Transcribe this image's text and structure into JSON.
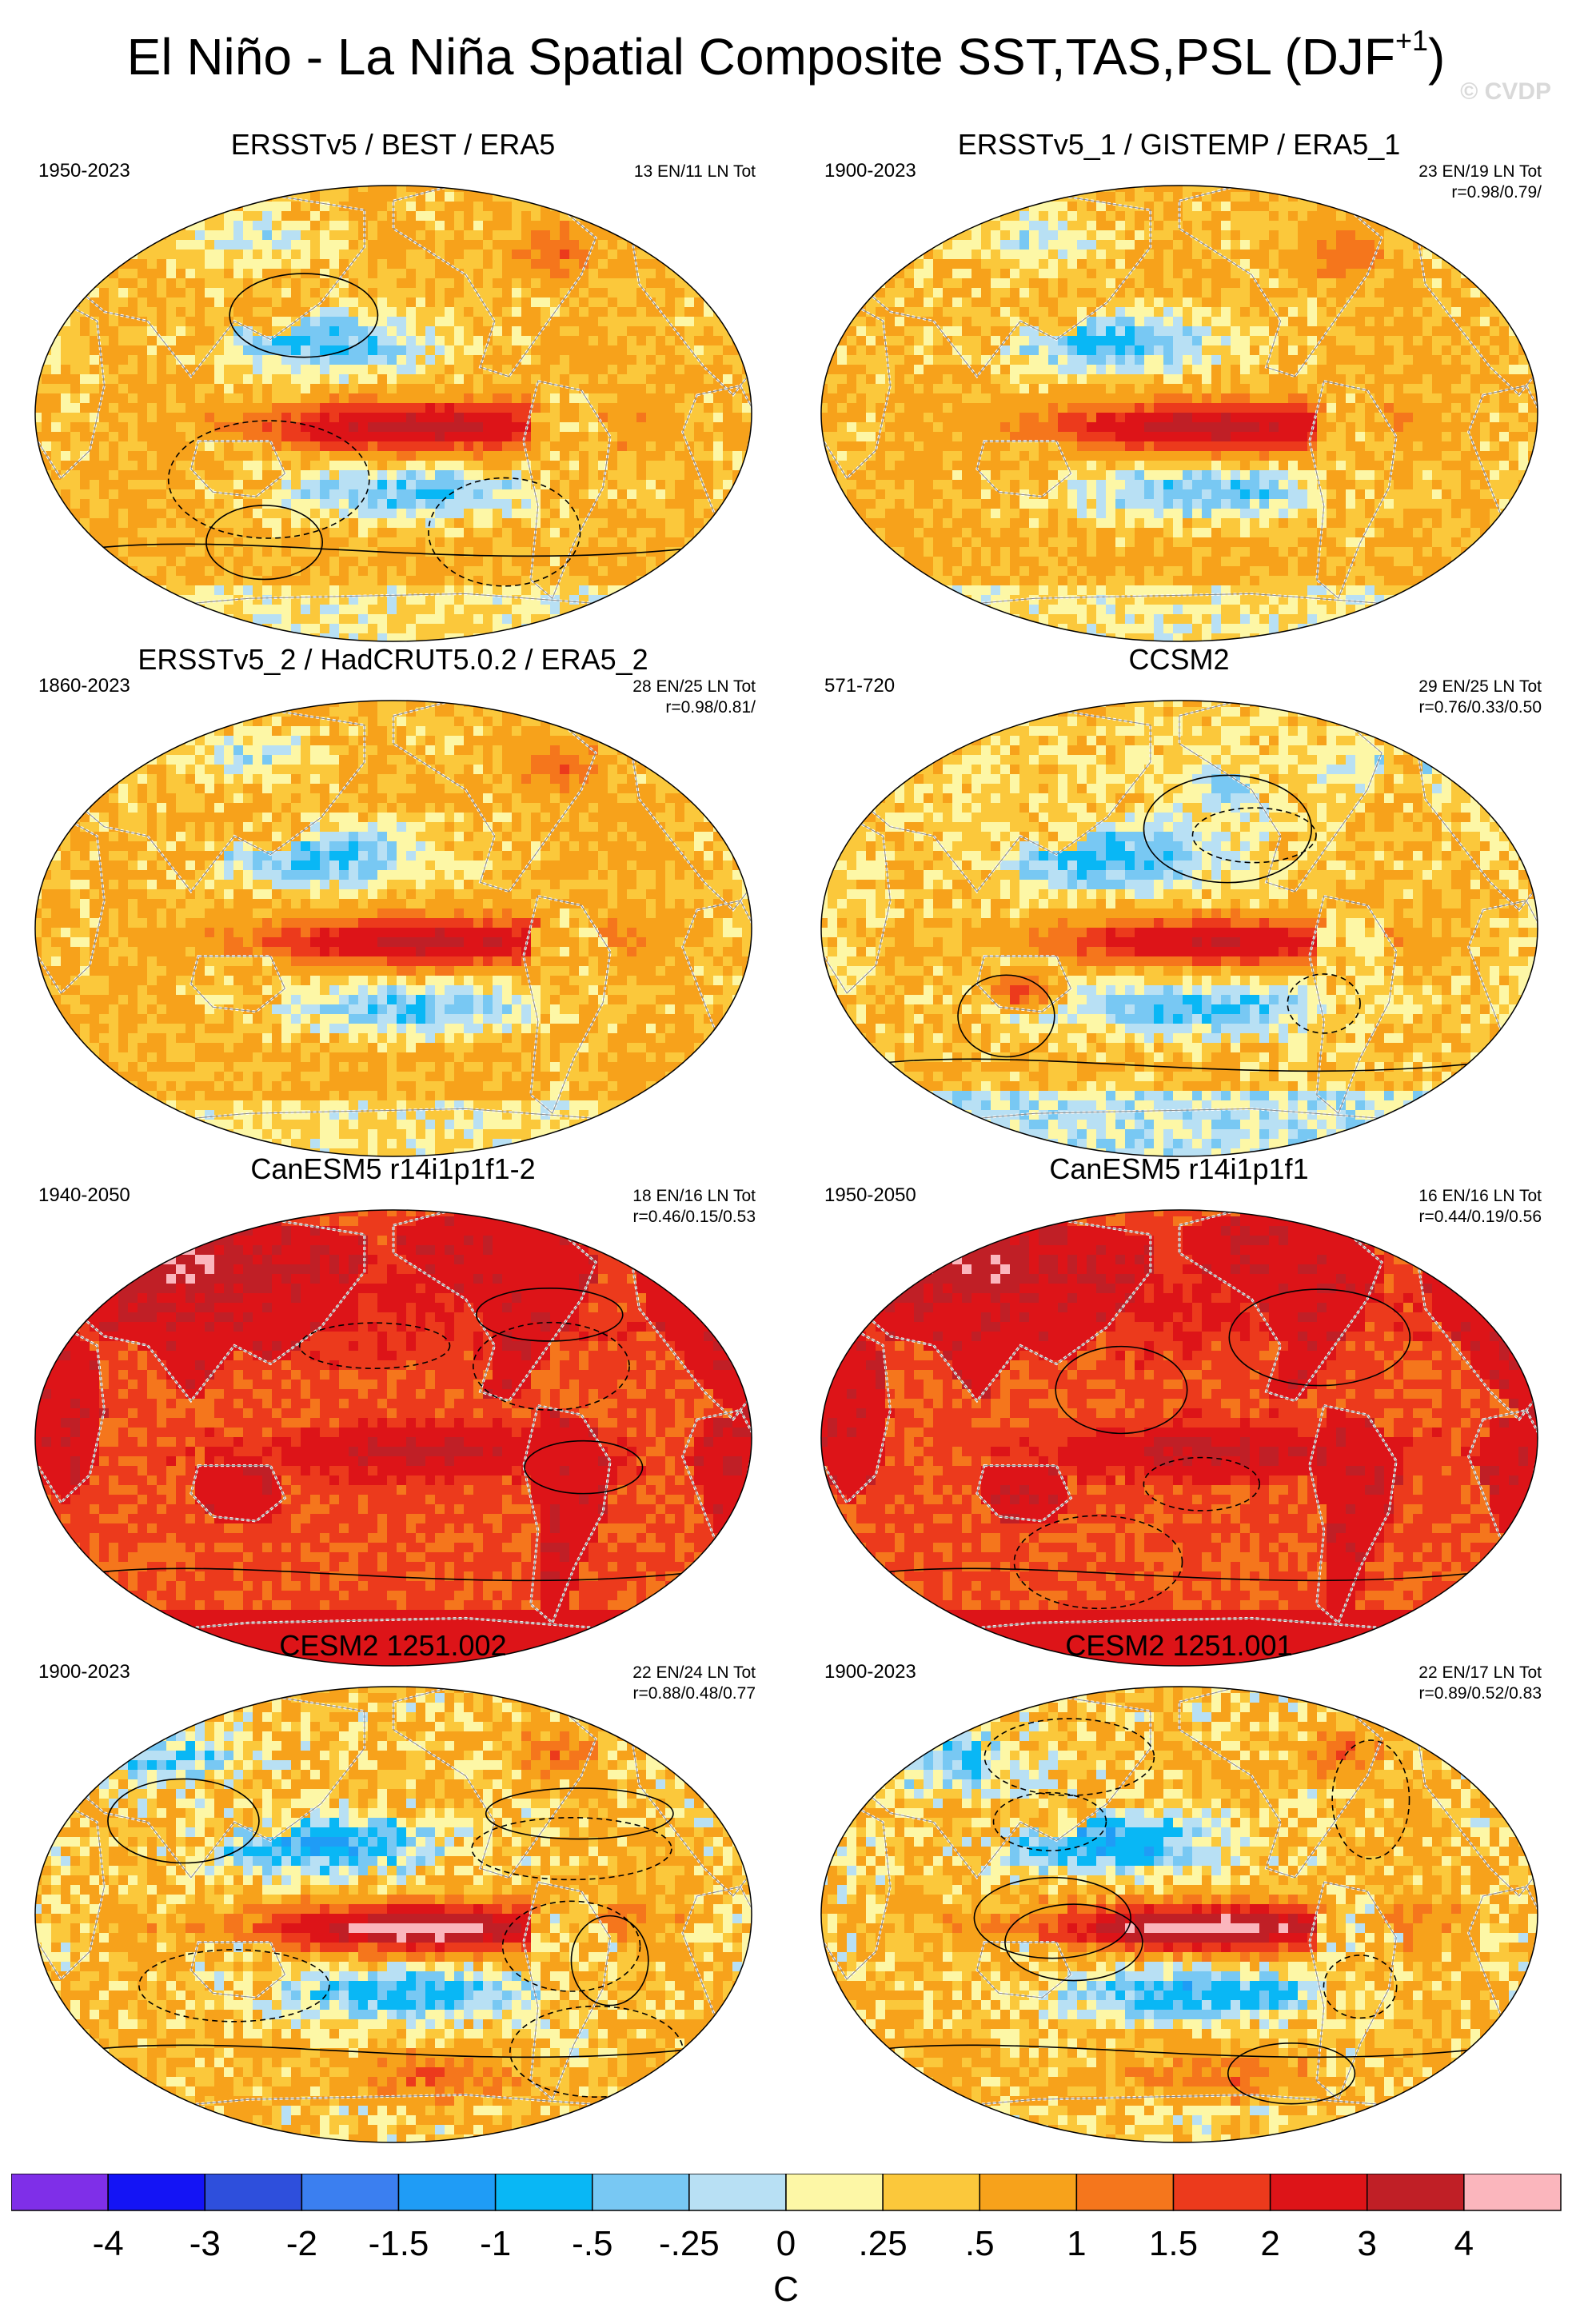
{
  "title": "El Niño - La Niña Spatial Composite SST,TAS,PSL (DJF",
  "title_superscript": "+1",
  "title_suffix": ")",
  "watermark": "© CVDP",
  "colors": {
    "land_outline": "#ffffff",
    "coast": "#888888",
    "contour": "#000000"
  },
  "chart_data": {
    "type": "heatmap",
    "description_units": "C",
    "panels": [
      {
        "title": "ERSSTv5 / BEST / ERA5",
        "period": "1950-2023",
        "stats": [
          "13 EN/11 LN Tot"
        ],
        "style": "obs",
        "seed": 11
      },
      {
        "title": "ERSSTv5_1 / GISTEMP / ERA5_1",
        "period": "1900-2023",
        "stats": [
          "23 EN/19 LN Tot",
          "r=0.98/0.79/"
        ],
        "style": "obs",
        "seed": 23
      },
      {
        "title": "ERSSTv5_2 / HadCRUT5.0.2 / ERA5_2",
        "period": "1860-2023",
        "stats": [
          "28 EN/25 LN Tot",
          "r=0.98/0.81/"
        ],
        "style": "obs",
        "seed": 37
      },
      {
        "title": "CCSM2",
        "period": "571-720",
        "stats": [
          "29 EN/25 LN Tot",
          "r=0.76/0.33/0.50"
        ],
        "style": "ccsm",
        "seed": 41
      },
      {
        "title": "CanESM5 r14i1p1f1-2",
        "period": "1940-2050",
        "stats": [
          "18 EN/16 LN Tot",
          "r=0.46/0.15/0.53"
        ],
        "style": "warm",
        "seed": 53
      },
      {
        "title": "CanESM5 r14i1p1f1",
        "period": "1950-2050",
        "stats": [
          "16 EN/16 LN Tot",
          "r=0.44/0.19/0.56"
        ],
        "style": "warm",
        "seed": 61
      },
      {
        "title": "CESM2 1251.002",
        "period": "1900-2023",
        "stats": [
          "22 EN/24 LN Tot",
          "r=0.88/0.48/0.77"
        ],
        "style": "cesm",
        "seed": 71
      },
      {
        "title": "CESM2 1251.001",
        "period": "1900-2023",
        "stats": [
          "22 EN/17 LN Tot",
          "r=0.89/0.52/0.83"
        ],
        "style": "cesm",
        "seed": 83
      }
    ],
    "colorbar": {
      "unit": "C",
      "tick_labels": [
        "-4",
        "-3",
        "-2",
        "-1.5",
        "-1",
        "-.5",
        "-.25",
        "0",
        ".25",
        ".5",
        "1",
        "1.5",
        "2",
        "3",
        "4"
      ],
      "levels": [
        -4,
        -3,
        -2,
        -1.5,
        -1,
        -0.5,
        -0.25,
        0,
        0.25,
        0.5,
        1,
        1.5,
        2,
        3,
        4
      ],
      "colors": [
        "#7f2fe8",
        "#1414f5",
        "#2e4fdc",
        "#3b7ff0",
        "#1f9cf6",
        "#09b7f5",
        "#78c8f3",
        "#b8e0f4",
        "#fdf7a6",
        "#fbc83b",
        "#f7a21b",
        "#f5761c",
        "#ec3a1c",
        "#dd1418",
        "#c01f26",
        "#fbb6bd"
      ]
    }
  }
}
